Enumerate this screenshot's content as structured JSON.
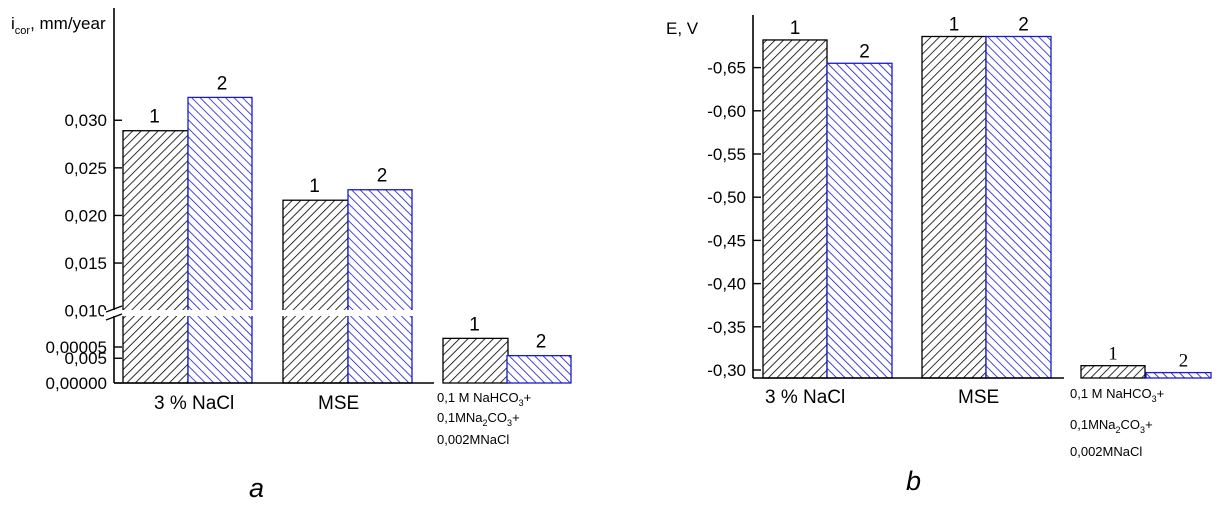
{
  "figure": {
    "panel_a_letter": "a",
    "panel_b_letter": "b"
  },
  "chart_data": [
    {
      "type": "bar",
      "panel": "a",
      "ylabel_main": "i",
      "ylabel_sub": "cor",
      "ylabel_rest": ", mm/year",
      "axis_break": true,
      "y_ticks_upper": [
        "0,005",
        "0,010",
        "0,015",
        "0,020",
        "0,025",
        "0,030"
      ],
      "y_ticks_lower": [
        "0,00000",
        "0,00005"
      ],
      "categories": [
        "3 % NaCl",
        "MSE",
        "0,1 M NaHCO3+ 0,1MNa2CO3+ 0,002MNaCl"
      ],
      "category_labels": {
        "cat1": "3 % NaCl",
        "cat2": "MSE",
        "cat3_line1": "0,1 M NaHCO",
        "cat3_line1_sub": "3",
        "cat3_line1_end": "+",
        "cat3_line2": "0,1MNa",
        "cat3_line2_sub1": "2",
        "cat3_line2_mid": "CO",
        "cat3_line2_sub2": "3",
        "cat3_line2_end": "+",
        "cat3_line3": "0,002MNaCl"
      },
      "series": [
        {
          "label": "1",
          "values": [
            0.0289,
            0.0216,
            6.2e-05
          ],
          "color": "#000000"
        },
        {
          "label": "2",
          "values": [
            0.0324,
            0.0227,
            3.8e-05
          ],
          "color": "#1a1acc"
        }
      ]
    },
    {
      "type": "bar",
      "panel": "b",
      "ylabel": "E, V",
      "y_ticks": [
        "-0,30",
        "-0,35",
        "-0,40",
        "-0,45",
        "-0,50",
        "-0,55",
        "-0,60",
        "-0,65"
      ],
      "ylim": [
        -0.29,
        -0.69
      ],
      "categories": [
        "3 % NaCl",
        "MSE",
        "0,1 M NaHCO3+ 0,1MNa2CO3+ 0,002MNaCl"
      ],
      "category_labels": {
        "cat1": "3 % NaCl",
        "cat2": "MSE",
        "cat3_line1": "0,1 M NaHCO",
        "cat3_line1_sub": "3",
        "cat3_line1_end": "+",
        "cat3_line2": "0,1MNa",
        "cat3_line2_sub1": "2",
        "cat3_line2_mid": "CO",
        "cat3_line2_sub2": "3",
        "cat3_line2_end": "+",
        "cat3_line3": "0,002MNaCl"
      },
      "series": [
        {
          "label": "1",
          "values": [
            -0.682,
            -0.686,
            -0.305
          ],
          "color": "#000000"
        },
        {
          "label": "2",
          "values": [
            -0.655,
            -0.686,
            -0.297
          ],
          "color": "#1a1acc"
        }
      ]
    }
  ]
}
